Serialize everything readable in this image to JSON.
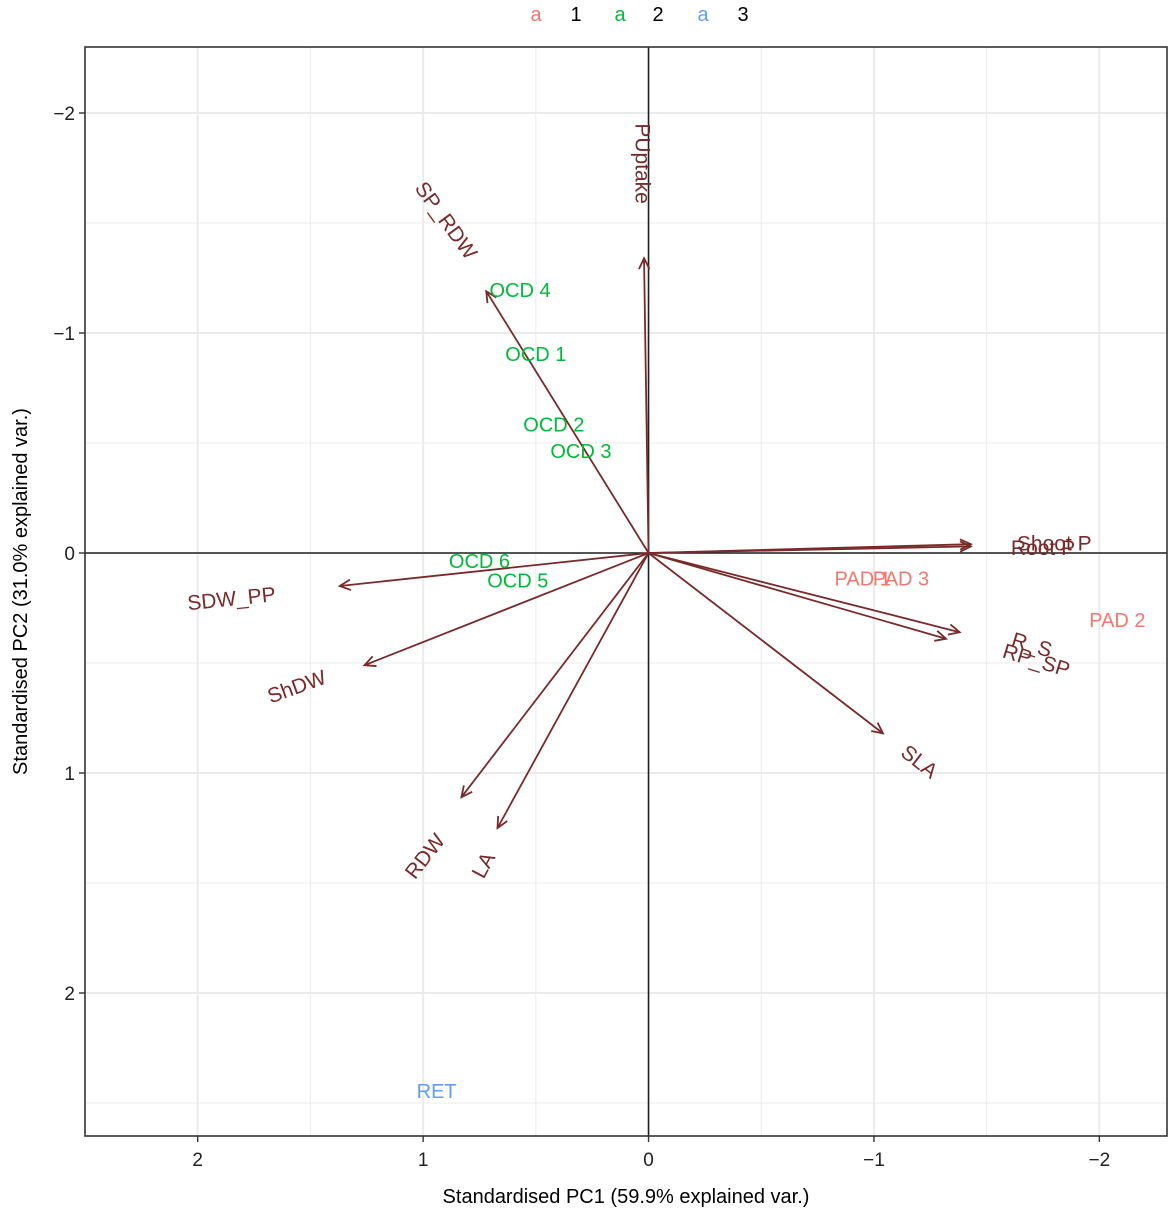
{
  "chart_data": {
    "type": "scatter",
    "subtype": "pca-biplot",
    "xlabel": "Standardised PC1 (59.9% explained var.)",
    "ylabel": "Standardised PC2 (31.0% explained var.)",
    "xlim": [
      2.5,
      -2.3
    ],
    "ylim": [
      -2.3,
      2.65
    ],
    "x_reversed": true,
    "y_reversed": true,
    "x_ticks": [
      2,
      1,
      0,
      -1,
      -2
    ],
    "x_tick_labels": [
      "2",
      "1",
      "0",
      "−1",
      "−2"
    ],
    "y_ticks": [
      -2,
      -1,
      0,
      1,
      2
    ],
    "y_tick_labels": [
      "−2",
      "−1",
      "0",
      "1",
      "2"
    ],
    "grid": true,
    "legend_position": "top",
    "legend": [
      {
        "symbol": "a",
        "label": "1",
        "color": "#f8766d"
      },
      {
        "symbol": "a",
        "label": "2",
        "color": "#00ba38"
      },
      {
        "symbol": "a",
        "label": "3",
        "color": "#619cff"
      }
    ],
    "arrow_color": "#7b2a2a",
    "loadings": [
      {
        "name": "PUptake",
        "x": 0.02,
        "y": -1.34,
        "lx": 0.03,
        "ly": -1.77,
        "rot": 90
      },
      {
        "name": "SP_RDW",
        "x": 0.72,
        "y": -1.19,
        "lx": 0.9,
        "ly": -1.51,
        "rot": 54
      },
      {
        "name": "Shoot P",
        "x": -1.43,
        "y": -0.04,
        "lx": -1.8,
        "ly": -0.04,
        "rot": 0
      },
      {
        "name": "Root P",
        "x": -1.43,
        "y": -0.03,
        "lx": -1.75,
        "ly": -0.02,
        "rot": 0
      },
      {
        "name": "SDW_PP",
        "x": 1.37,
        "y": 0.15,
        "lx": 1.85,
        "ly": 0.21,
        "rot": -6
      },
      {
        "name": "ShDW",
        "x": 1.26,
        "y": 0.51,
        "lx": 1.56,
        "ly": 0.61,
        "rot": -20
      },
      {
        "name": "R_S",
        "x": -1.38,
        "y": 0.36,
        "lx": -1.7,
        "ly": 0.42,
        "rot": 17
      },
      {
        "name": "RP_SP",
        "x": -1.32,
        "y": 0.39,
        "lx": -1.72,
        "ly": 0.49,
        "rot": 17
      },
      {
        "name": "SLA",
        "x": -1.04,
        "y": 0.82,
        "lx": -1.2,
        "ly": 0.95,
        "rot": 38
      },
      {
        "name": "RDW",
        "x": 0.83,
        "y": 1.11,
        "lx": 0.99,
        "ly": 1.38,
        "rot": -52
      },
      {
        "name": "LA",
        "x": 0.67,
        "y": 1.25,
        "lx": 0.73,
        "ly": 1.42,
        "rot": -62
      }
    ],
    "observations": [
      {
        "label": "OCD 4",
        "x": 0.57,
        "y": -1.19,
        "group": "2"
      },
      {
        "label": "OCD 1",
        "x": 0.5,
        "y": -0.9,
        "group": "2"
      },
      {
        "label": "OCD 2",
        "x": 0.42,
        "y": -0.58,
        "group": "2"
      },
      {
        "label": "OCD 3",
        "x": 0.3,
        "y": -0.46,
        "group": "2"
      },
      {
        "label": "OCD 6",
        "x": 0.75,
        "y": 0.04,
        "group": "2"
      },
      {
        "label": "OCD 5",
        "x": 0.58,
        "y": 0.13,
        "group": "2"
      },
      {
        "label": "PAD 1",
        "x": -0.95,
        "y": 0.12,
        "group": "1"
      },
      {
        "label": "PAD 3",
        "x": -1.12,
        "y": 0.12,
        "group": "1"
      },
      {
        "label": "PAD 2",
        "x": -2.08,
        "y": 0.31,
        "group": "1"
      },
      {
        "label": "RET",
        "x": 0.94,
        "y": 2.45,
        "group": "3"
      }
    ]
  }
}
